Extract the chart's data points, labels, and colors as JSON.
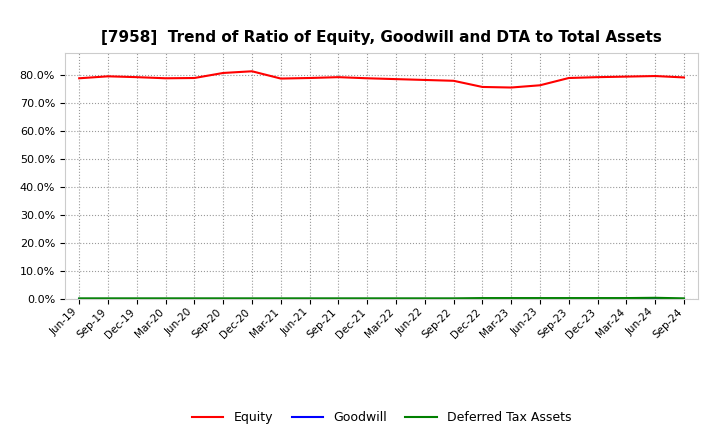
{
  "title": "[7958]  Trend of Ratio of Equity, Goodwill and DTA to Total Assets",
  "x_labels": [
    "Jun-19",
    "Sep-19",
    "Dec-19",
    "Mar-20",
    "Jun-20",
    "Sep-20",
    "Dec-20",
    "Mar-21",
    "Jun-21",
    "Sep-21",
    "Dec-21",
    "Mar-22",
    "Jun-22",
    "Sep-22",
    "Dec-22",
    "Mar-23",
    "Jun-23",
    "Sep-23",
    "Dec-23",
    "Mar-24",
    "Jun-24",
    "Sep-24"
  ],
  "equity": [
    0.789,
    0.796,
    0.793,
    0.789,
    0.79,
    0.808,
    0.814,
    0.788,
    0.79,
    0.793,
    0.789,
    0.786,
    0.783,
    0.78,
    0.758,
    0.756,
    0.764,
    0.79,
    0.793,
    0.795,
    0.797,
    0.792
  ],
  "goodwill": [
    0.0,
    0.0,
    0.0,
    0.0,
    0.0,
    0.0,
    0.0,
    0.0,
    0.0,
    0.0,
    0.0,
    0.0,
    0.0,
    0.0,
    0.0,
    0.0,
    0.0,
    0.0,
    0.0,
    0.0,
    0.0,
    0.0
  ],
  "dta": [
    0.003,
    0.003,
    0.003,
    0.003,
    0.003,
    0.003,
    0.003,
    0.003,
    0.003,
    0.003,
    0.003,
    0.003,
    0.003,
    0.003,
    0.004,
    0.004,
    0.004,
    0.004,
    0.004,
    0.004,
    0.005,
    0.003
  ],
  "equity_color": "#ff0000",
  "goodwill_color": "#0000ff",
  "dta_color": "#008000",
  "ylim": [
    0.0,
    0.88
  ],
  "yticks": [
    0.0,
    0.1,
    0.2,
    0.3,
    0.4,
    0.5,
    0.6,
    0.7,
    0.8
  ],
  "background_color": "#ffffff",
  "plot_bg_color": "#ffffff",
  "grid_color": "#999999",
  "title_fontsize": 11,
  "legend_labels": [
    "Equity",
    "Goodwill",
    "Deferred Tax Assets"
  ]
}
